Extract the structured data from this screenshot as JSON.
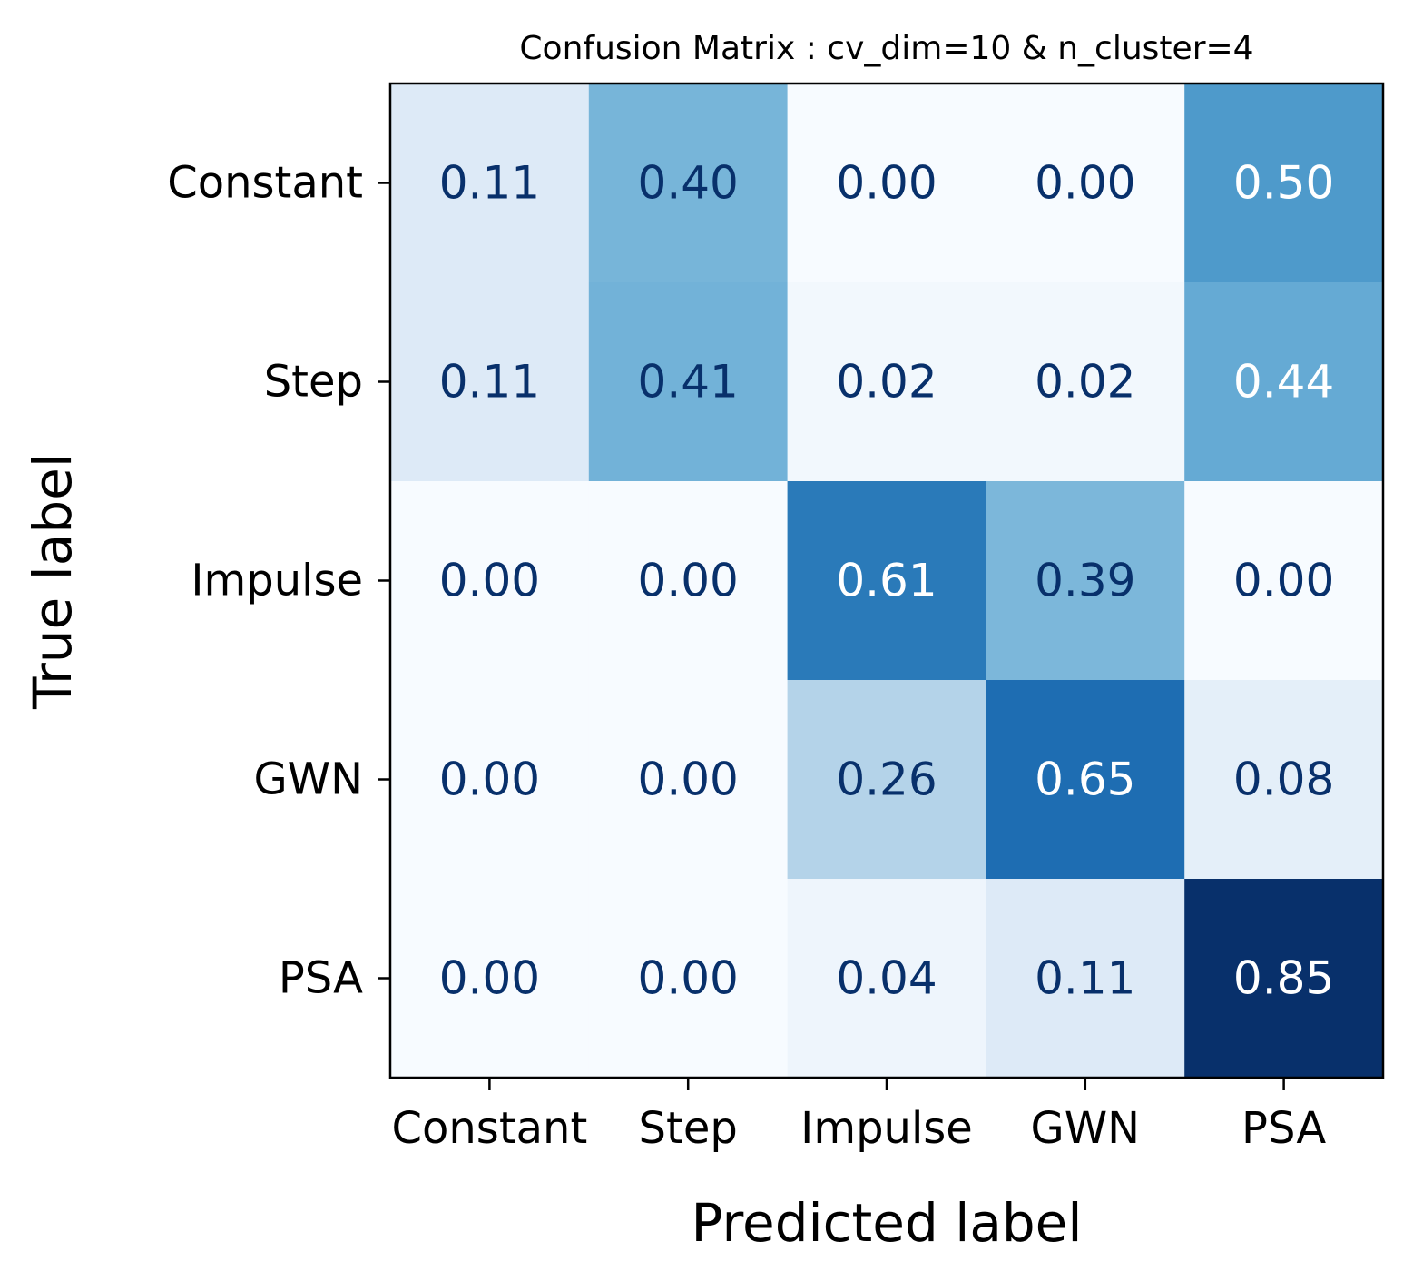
{
  "chart_data": {
    "type": "heatmap",
    "title": "Confusion Matrix : cv_dim=10 & n_cluster=4",
    "xlabel": "Predicted label",
    "ylabel": "True label",
    "x_categories": [
      "Constant",
      "Step",
      "Impulse",
      "GWN",
      "PSA"
    ],
    "y_categories": [
      "Constant",
      "Step",
      "Impulse",
      "GWN",
      "PSA"
    ],
    "values": [
      [
        0.11,
        0.4,
        0.0,
        0.0,
        0.5
      ],
      [
        0.11,
        0.41,
        0.02,
        0.02,
        0.44
      ],
      [
        0.0,
        0.0,
        0.61,
        0.39,
        0.0
      ],
      [
        0.0,
        0.0,
        0.26,
        0.65,
        0.08
      ],
      [
        0.0,
        0.0,
        0.04,
        0.11,
        0.85
      ]
    ],
    "value_format": "0.00",
    "colormap": "Blues",
    "value_range": [
      0,
      0.85
    ],
    "text_color_dark": "#08306b",
    "text_color_light": "#ffffff"
  }
}
